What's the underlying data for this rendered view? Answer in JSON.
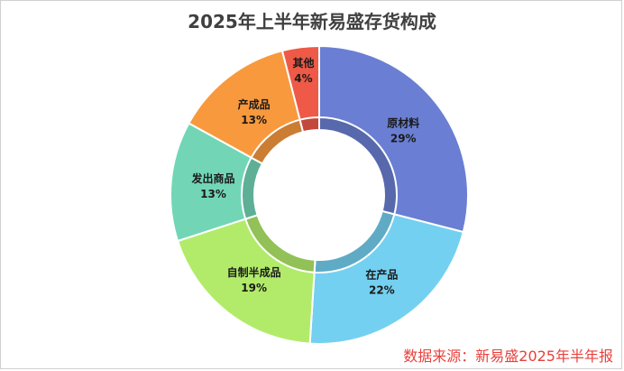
{
  "chart_data": {
    "type": "pie",
    "variant": "donut",
    "title": "2025年上半年新易盛存货构成",
    "slices": [
      {
        "label": "原材料",
        "pct_label": "29%",
        "value": 29,
        "color": "#6a7fd3"
      },
      {
        "label": "在产品",
        "pct_label": "22%",
        "value": 22,
        "color": "#74d0f0"
      },
      {
        "label": "自制半成品",
        "pct_label": "19%",
        "value": 19,
        "color": "#b2eb6a"
      },
      {
        "label": "发出商品",
        "pct_label": "13%",
        "value": 13,
        "color": "#72d6b6"
      },
      {
        "label": "产成品",
        "pct_label": "13%",
        "value": 13,
        "color": "#f8993e"
      },
      {
        "label": "其他",
        "pct_label": "4%",
        "value": 4,
        "color": "#ee5a47"
      }
    ],
    "legend": "none"
  },
  "source_note": "数据来源：新易盛2025年半年报"
}
